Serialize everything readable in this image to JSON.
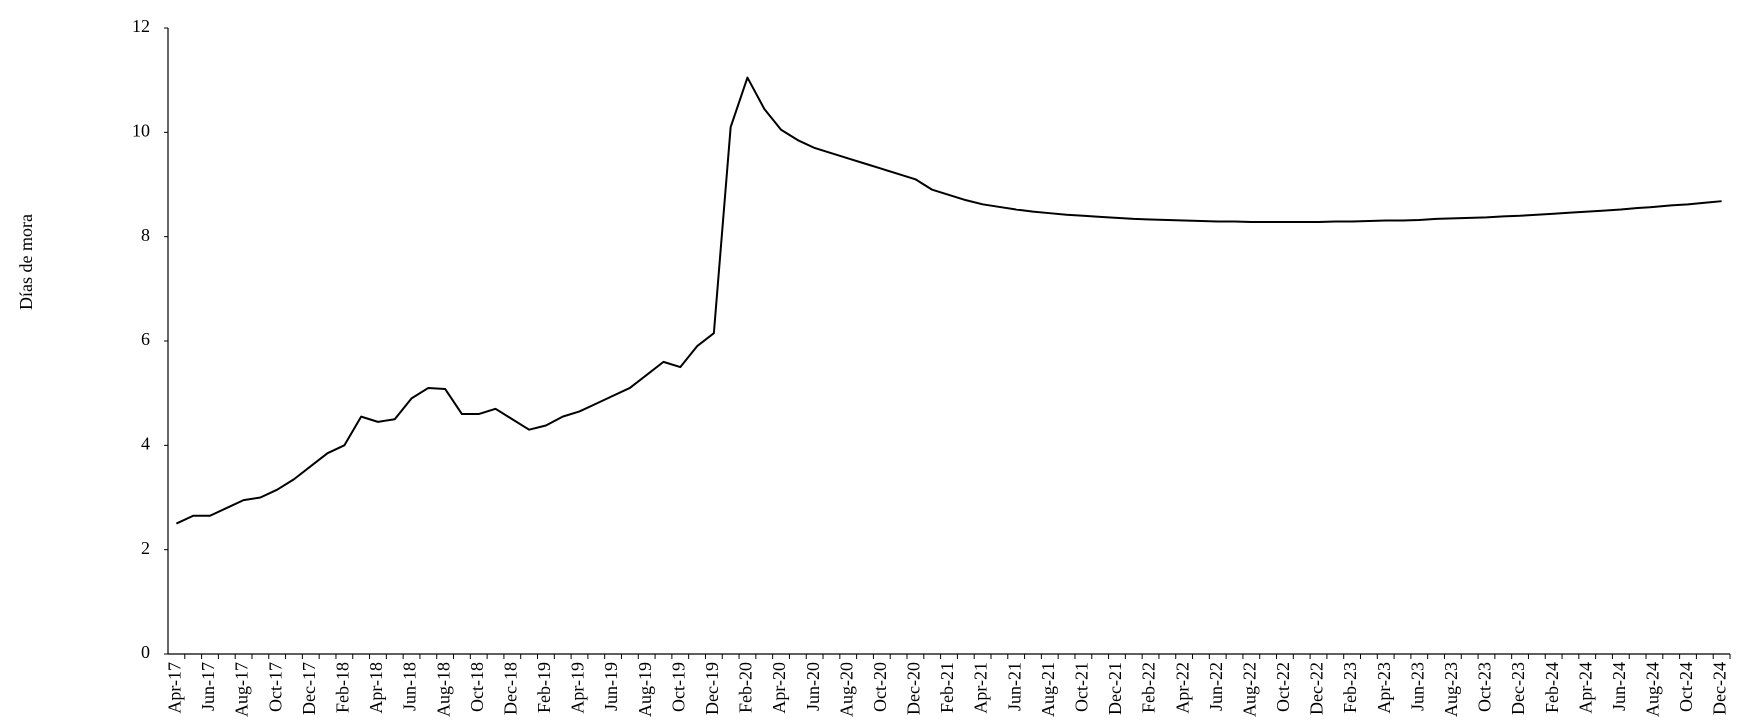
{
  "chart_data": {
    "type": "line",
    "y_label": "Días de mora",
    "categories": [
      "Apr-17",
      null,
      "Jun-17",
      null,
      "Aug-17",
      null,
      "Oct-17",
      null,
      "Dec-17",
      null,
      "Feb-18",
      null,
      "Apr-18",
      null,
      "Jun-18",
      null,
      "Aug-18",
      null,
      "Oct-18",
      null,
      "Dec-18",
      null,
      "Feb-19",
      null,
      "Apr-19",
      null,
      "Jun-19",
      null,
      "Aug-19",
      null,
      "Oct-19",
      null,
      "Dec-19",
      null,
      "Feb-20",
      null,
      "Apr-20",
      null,
      "Jun-20",
      null,
      "Aug-20",
      null,
      "Oct-20",
      null,
      "Dec-20",
      null,
      "Feb-21",
      null,
      "Apr-21",
      null,
      "Jun-21",
      null,
      "Aug-21",
      null,
      "Oct-21",
      null,
      "Dec-21",
      null,
      "Feb-22",
      null,
      "Apr-22",
      null,
      "Jun-22",
      null,
      "Aug-22",
      null,
      "Oct-22",
      null,
      "Dec-22",
      null,
      "Feb-23",
      null,
      "Apr-23",
      null,
      "Jun-23",
      null,
      "Aug-23",
      null,
      "Oct-23",
      null,
      "Dec-23",
      null,
      "Feb-24",
      null,
      "Apr-24",
      null,
      "Jun-24",
      null,
      "Aug-24",
      null,
      "Oct-24",
      null,
      "Dec-24"
    ],
    "values": [
      2.5,
      2.65,
      2.65,
      2.8,
      2.95,
      3.0,
      3.15,
      3.35,
      3.6,
      3.85,
      4.0,
      4.55,
      4.45,
      4.5,
      4.9,
      5.1,
      5.08,
      4.6,
      4.6,
      4.7,
      4.5,
      4.3,
      4.38,
      4.55,
      4.65,
      4.8,
      4.95,
      5.1,
      5.35,
      5.6,
      5.5,
      5.9,
      6.15,
      10.1,
      11.05,
      10.45,
      10.05,
      9.85,
      9.7,
      9.6,
      9.5,
      9.4,
      9.3,
      9.2,
      9.1,
      8.9,
      8.8,
      8.7,
      8.62,
      8.57,
      8.52,
      8.48,
      8.45,
      8.42,
      8.4,
      8.38,
      8.36,
      8.34,
      8.33,
      8.32,
      8.31,
      8.3,
      8.29,
      8.29,
      8.28,
      8.28,
      8.28,
      8.28,
      8.28,
      8.29,
      8.29,
      8.3,
      8.31,
      8.31,
      8.32,
      8.34,
      8.35,
      8.36,
      8.37,
      8.39,
      8.4,
      8.42,
      8.44,
      8.46,
      8.48,
      8.5,
      8.52,
      8.55,
      8.57,
      8.6,
      8.62,
      8.65,
      8.68
    ],
    "color": "#000000",
    "ylim": [
      0,
      12
    ],
    "yticks": [
      0,
      2,
      4,
      6,
      8,
      10,
      12
    ],
    "grid": false
  }
}
